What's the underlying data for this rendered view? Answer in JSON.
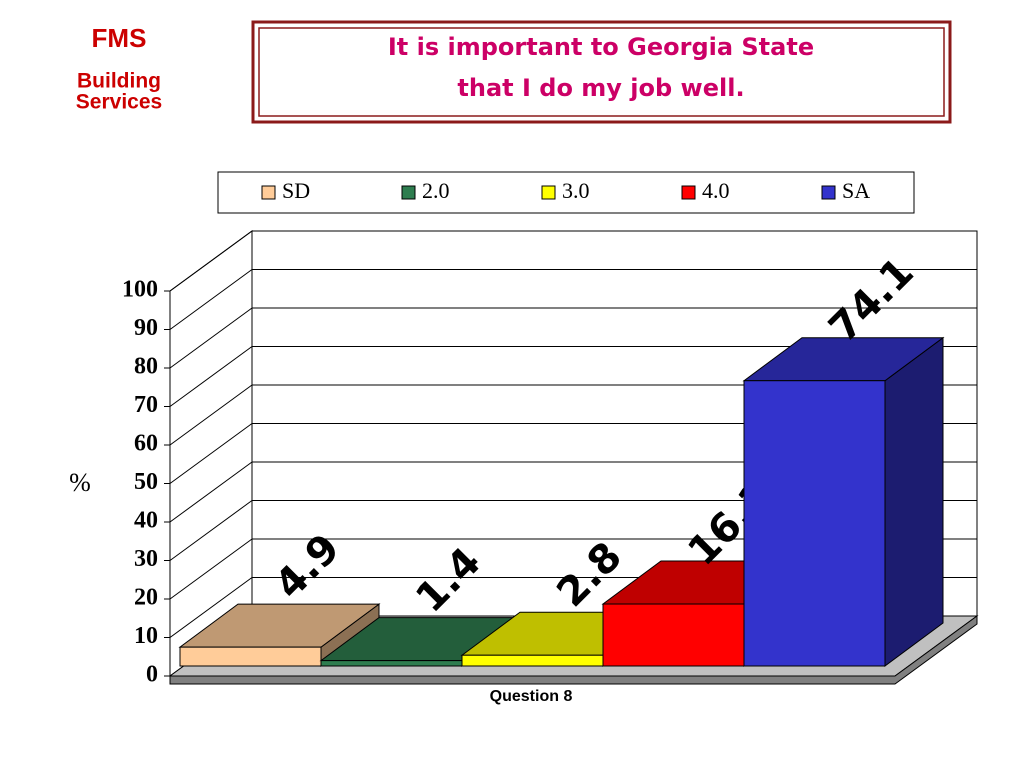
{
  "logo": {
    "title": "FMS",
    "line1": "Building",
    "line2": "Services"
  },
  "chart_data": {
    "type": "bar3d",
    "title": [
      "It is important to Georgia State",
      "that I do my job well."
    ],
    "x_label": "Question 8",
    "y_label": "%",
    "categories": [
      "Question 8"
    ],
    "series": [
      {
        "name": "SD",
        "color": "#ffcc99",
        "values": [
          4.9
        ]
      },
      {
        "name": "2.0",
        "color": "#2e7d4f",
        "values": [
          1.4
        ]
      },
      {
        "name": "3.0",
        "color": "#ffff00",
        "values": [
          2.8
        ]
      },
      {
        "name": "4.0",
        "color": "#ff0000",
        "values": [
          16.1
        ]
      },
      {
        "name": "SA",
        "color": "#3333cc",
        "values": [
          74.1
        ]
      }
    ],
    "ylim": [
      0,
      100
    ],
    "yticks": [
      0,
      10,
      20,
      30,
      40,
      50,
      60,
      70,
      80,
      90,
      100
    ],
    "grid": true
  }
}
